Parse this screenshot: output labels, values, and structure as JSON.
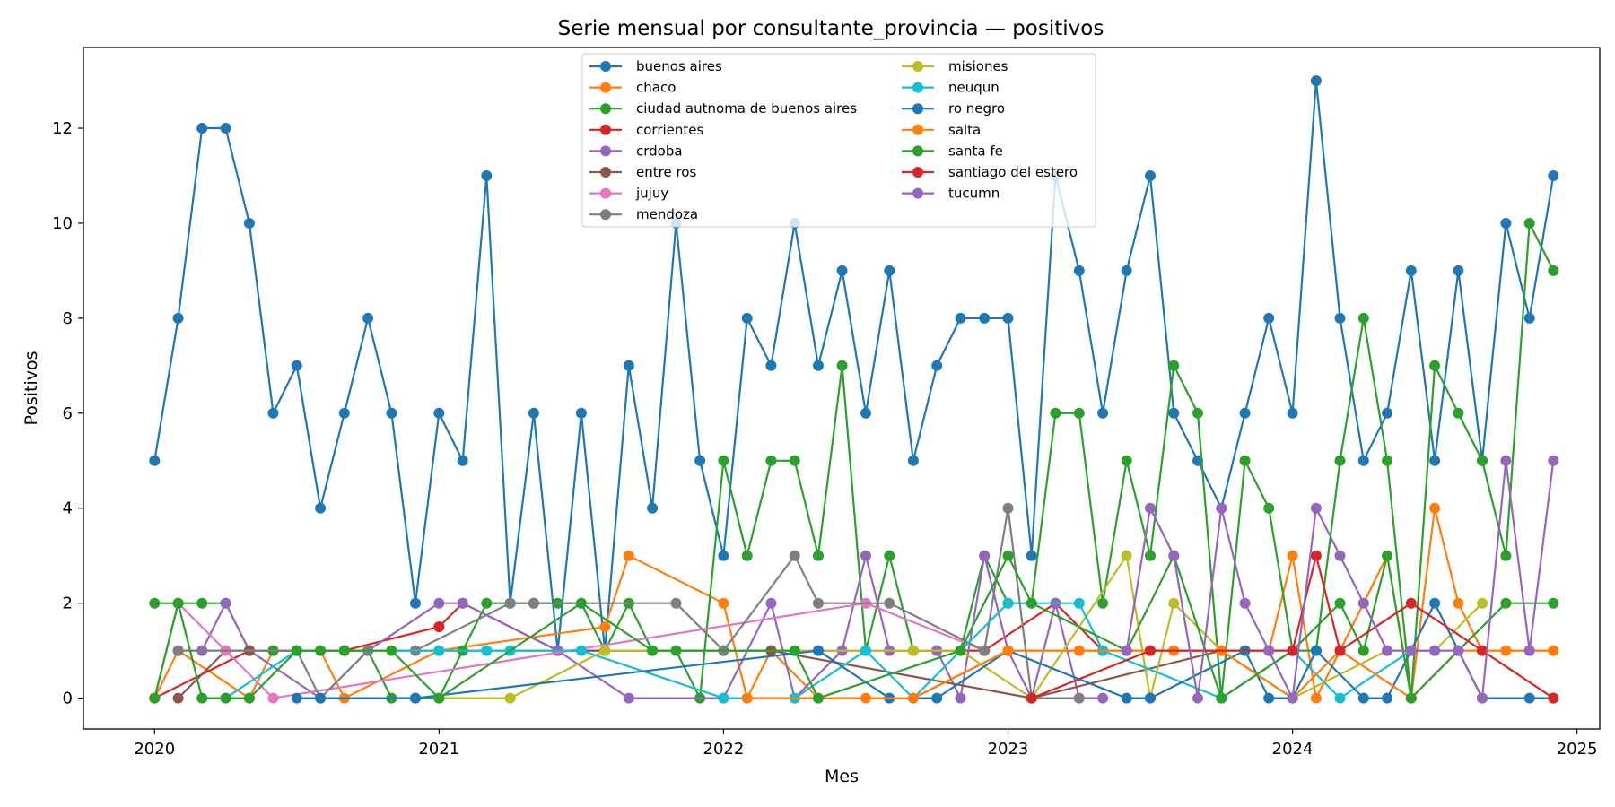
{
  "chart_data": {
    "type": "line",
    "title": "Serie mensual por consultante_provincia — positivos",
    "xlabel": "Mes",
    "ylabel": "Positivos",
    "x_ticks": [
      2020,
      2021,
      2022,
      2023,
      2024,
      2025
    ],
    "y_ticks": [
      0,
      2,
      4,
      6,
      8,
      10,
      12
    ],
    "xlim": [
      2019.75,
      2025.08
    ],
    "ylim": [
      -0.65,
      13.7
    ],
    "grid": false,
    "legend_position": "top-center",
    "series": [
      {
        "name": "buenos aires",
        "color": "#1f77b4",
        "x": [
          2020.0,
          2020.083,
          2020.167,
          2020.25,
          2020.333,
          2020.417,
          2020.5,
          2020.583,
          2020.667,
          2020.75,
          2020.833,
          2020.917,
          2021.0,
          2021.083,
          2021.167,
          2021.25,
          2021.333,
          2021.417,
          2021.5,
          2021.583,
          2021.667,
          2021.75,
          2021.833,
          2021.917,
          2022.0,
          2022.083,
          2022.167,
          2022.25,
          2022.333,
          2022.417,
          2022.5,
          2022.583,
          2022.667,
          2022.75,
          2022.833,
          2022.917,
          2023.0,
          2023.083,
          2023.167,
          2023.25,
          2023.333,
          2023.417,
          2023.5,
          2023.583,
          2023.667,
          2023.75,
          2023.833,
          2023.917,
          2024.0,
          2024.083,
          2024.167,
          2024.25,
          2024.333,
          2024.417,
          2024.5,
          2024.583,
          2024.667,
          2024.75,
          2024.833,
          2024.917
        ],
        "y": [
          5,
          8,
          12,
          12,
          10,
          6,
          7,
          4,
          6,
          8,
          6,
          2,
          6,
          5,
          11,
          2,
          6,
          1,
          6,
          1,
          7,
          4,
          10,
          5,
          3,
          8,
          7,
          10,
          7,
          9,
          6,
          9,
          5,
          7,
          8,
          8,
          8,
          3,
          11,
          9,
          6,
          9,
          11,
          6,
          5,
          4,
          6,
          8,
          6,
          13,
          8,
          5,
          6,
          9,
          5,
          9,
          5,
          10,
          8,
          11
        ]
      },
      {
        "name": "chaco",
        "color": "#ff7f0e",
        "x": [
          2020.0,
          2020.083,
          2020.333,
          2020.417,
          2020.583,
          2020.667,
          2021.0,
          2021.583,
          2021.667,
          2022.0,
          2022.083,
          2022.167,
          2022.333,
          2022.5,
          2022.667,
          2023.0,
          2023.25,
          2023.5,
          2023.583,
          2023.917,
          2024.0,
          2024.083,
          2024.167,
          2024.25,
          2024.333,
          2024.417,
          2024.5,
          2024.583,
          2024.667,
          2024.75,
          2024.833,
          2024.917
        ],
        "y": [
          0,
          1,
          0,
          1,
          1,
          0,
          1,
          1.5,
          3,
          2,
          0,
          1,
          0,
          0,
          0,
          1,
          1,
          1,
          1,
          1,
          3,
          0,
          1,
          2,
          3,
          0,
          4,
          2,
          1,
          1,
          1,
          1
        ]
      },
      {
        "name": "ciudad autnoma de buenos aires",
        "color": "#2ca02c",
        "x": [
          2020.0,
          2020.083,
          2020.167,
          2020.25,
          2020.333,
          2020.417,
          2020.5,
          2020.583,
          2020.667,
          2020.75,
          2020.833,
          2020.917,
          2021.0,
          2021.083,
          2021.167,
          2021.25,
          2021.333,
          2021.417,
          2021.5,
          2021.583,
          2021.667,
          2021.75,
          2021.833,
          2021.917,
          2022.0,
          2022.083,
          2022.167,
          2022.25,
          2022.333,
          2022.417,
          2022.5,
          2022.583,
          2022.667,
          2022.75,
          2022.833,
          2022.917,
          2023.0,
          2023.083,
          2023.167,
          2023.25,
          2023.333,
          2023.417,
          2023.5,
          2023.583,
          2023.667,
          2023.75,
          2023.833,
          2023.917,
          2024.0,
          2024.083,
          2024.167,
          2024.25,
          2024.333,
          2024.417,
          2024.5,
          2024.583,
          2024.667,
          2024.75,
          2024.833,
          2024.917
        ],
        "y": [
          2,
          2,
          2,
          2,
          1,
          1,
          1,
          1,
          1,
          1,
          0,
          0,
          0,
          1,
          2,
          2,
          2,
          2,
          2,
          1,
          2,
          1,
          1,
          0,
          5,
          3,
          5,
          5,
          3,
          7,
          1,
          3,
          1,
          1,
          1,
          3,
          2,
          2,
          6,
          6,
          2,
          5,
          3,
          7,
          6,
          0,
          5,
          4,
          1,
          1,
          5,
          8,
          5,
          0,
          7,
          6,
          5,
          3,
          10,
          9
        ]
      },
      {
        "name": "corrientes",
        "color": "#d62728",
        "x": [
          2020.0,
          2020.333,
          2020.667,
          2021.0,
          2021.083,
          2021.417,
          2022.0,
          2022.917,
          2023.167,
          2023.333
        ],
        "y": [
          0,
          1,
          1,
          1.5,
          2,
          1,
          1,
          1,
          2,
          1
        ]
      },
      {
        "name": "crdoba",
        "color": "#9467bd",
        "x": [
          2020.083,
          2020.167,
          2020.25,
          2020.333,
          2020.583,
          2020.75,
          2021.0,
          2021.083,
          2021.417,
          2021.667,
          2022.0,
          2022.167,
          2022.25,
          2022.417,
          2022.5,
          2022.583,
          2022.75,
          2022.833,
          2022.917,
          2023.0,
          2023.083,
          2023.167,
          2023.25,
          2023.333
        ],
        "y": [
          1,
          1,
          2,
          1,
          0,
          1,
          2,
          2,
          1,
          0,
          0,
          2,
          0,
          1,
          3,
          1,
          1,
          0,
          3,
          1,
          0,
          2,
          0,
          0
        ]
      },
      {
        "name": "entre ros",
        "color": "#8c564b",
        "x": [
          2020.083,
          2020.25,
          2020.333,
          2022.167,
          2023.083,
          2023.75
        ],
        "y": [
          0,
          1,
          1,
          1,
          0,
          1
        ]
      },
      {
        "name": "jujuy",
        "color": "#e377c2",
        "x": [
          2020.0,
          2020.083,
          2020.25,
          2020.417,
          2022.5,
          2022.917
        ],
        "y": [
          0,
          2,
          1,
          0,
          2,
          1
        ]
      },
      {
        "name": "mendoza",
        "color": "#7f7f7f",
        "x": [
          2020.083,
          2020.5,
          2020.583,
          2020.75,
          2020.917,
          2021.25,
          2021.333,
          2021.833,
          2022.0,
          2022.25,
          2022.333,
          2022.583,
          2022.917,
          2023.0,
          2023.083,
          2023.25
        ],
        "y": [
          1,
          1,
          0,
          1,
          1,
          2,
          2,
          2,
          1,
          3,
          2,
          2,
          1,
          4,
          0,
          0
        ]
      },
      {
        "name": "misiones",
        "color": "#bcbd22",
        "x": [
          2021.0,
          2021.25,
          2021.583,
          2022.5,
          2022.667,
          2022.833,
          2023.083,
          2023.417,
          2023.5,
          2023.583,
          2023.75,
          2024.0,
          2024.333,
          2024.5,
          2024.667
        ],
        "y": [
          0,
          0,
          1,
          1,
          1,
          1,
          0,
          3,
          0,
          2,
          1,
          0,
          1,
          1,
          2
        ]
      },
      {
        "name": "neuqun",
        "color": "#17becf",
        "x": [
          2020.25,
          2020.5,
          2021.0,
          2021.167,
          2021.25,
          2021.5,
          2022.0,
          2022.25,
          2022.5,
          2022.667,
          2023.0,
          2023.25,
          2023.333,
          2023.75,
          2024.0,
          2024.167,
          2024.417,
          2024.5
        ],
        "y": [
          0,
          1,
          1,
          1,
          1,
          1,
          0,
          0,
          1,
          0,
          2,
          2,
          1,
          0,
          1,
          0,
          1,
          1
        ]
      },
      {
        "name": "ro negro",
        "color": "#1f77b4",
        "x": [
          2020.5,
          2020.583,
          2020.917,
          2022.333,
          2022.583,
          2022.75,
          2023.0,
          2023.417,
          2023.5,
          2023.833,
          2023.917,
          2024.0,
          2024.083,
          2024.25,
          2024.333,
          2024.5,
          2024.583,
          2024.667,
          2024.833,
          2024.917
        ],
        "y": [
          0,
          0,
          0,
          1,
          0,
          0,
          1,
          0,
          0,
          1,
          0,
          0,
          1,
          0,
          0,
          2,
          1,
          0,
          0,
          0
        ]
      },
      {
        "name": "salta",
        "color": "#ff7f0e",
        "x": [
          2022.083,
          2022.333,
          2022.667,
          2023.0,
          2023.5,
          2023.75,
          2024.0,
          2024.167,
          2024.417,
          2024.583,
          2024.917
        ],
        "y": [
          0,
          0,
          0,
          1,
          1,
          1,
          0,
          1,
          0,
          1,
          1
        ]
      },
      {
        "name": "santa fe",
        "color": "#2ca02c",
        "x": [
          2020.0,
          2020.083,
          2020.167,
          2020.25,
          2020.333,
          2020.5,
          2020.667,
          2020.833,
          2021.0,
          2021.5,
          2021.75,
          2022.25,
          2022.333,
          2022.833,
          2023.0,
          2023.083,
          2023.417,
          2023.583,
          2023.75,
          2024.0,
          2024.167,
          2024.25,
          2024.333,
          2024.417,
          2024.583,
          2024.75,
          2024.917
        ],
        "y": [
          0,
          2,
          0,
          0,
          0,
          1,
          1,
          1,
          0,
          2,
          1,
          1,
          0,
          1,
          3,
          2,
          1,
          3,
          0,
          1,
          2,
          1,
          3,
          0,
          1,
          2,
          2
        ]
      },
      {
        "name": "santiago del estero",
        "color": "#d62728",
        "x": [
          2023.083,
          2023.5,
          2023.917,
          2024.0,
          2024.083,
          2024.167,
          2024.417,
          2024.667,
          2024.917
        ],
        "y": [
          0,
          1,
          1,
          1,
          3,
          1,
          2,
          1,
          0
        ]
      },
      {
        "name": "tucumn",
        "color": "#9467bd",
        "x": [
          2023.417,
          2023.5,
          2023.583,
          2023.667,
          2023.75,
          2023.833,
          2023.917,
          2024.0,
          2024.083,
          2024.167,
          2024.25,
          2024.333,
          2024.417,
          2024.5,
          2024.583,
          2024.667,
          2024.75,
          2024.833,
          2024.917
        ],
        "y": [
          1,
          4,
          3,
          0,
          4,
          2,
          1,
          0,
          4,
          3,
          2,
          1,
          1,
          1,
          1,
          0,
          5,
          1,
          5
        ]
      }
    ]
  }
}
